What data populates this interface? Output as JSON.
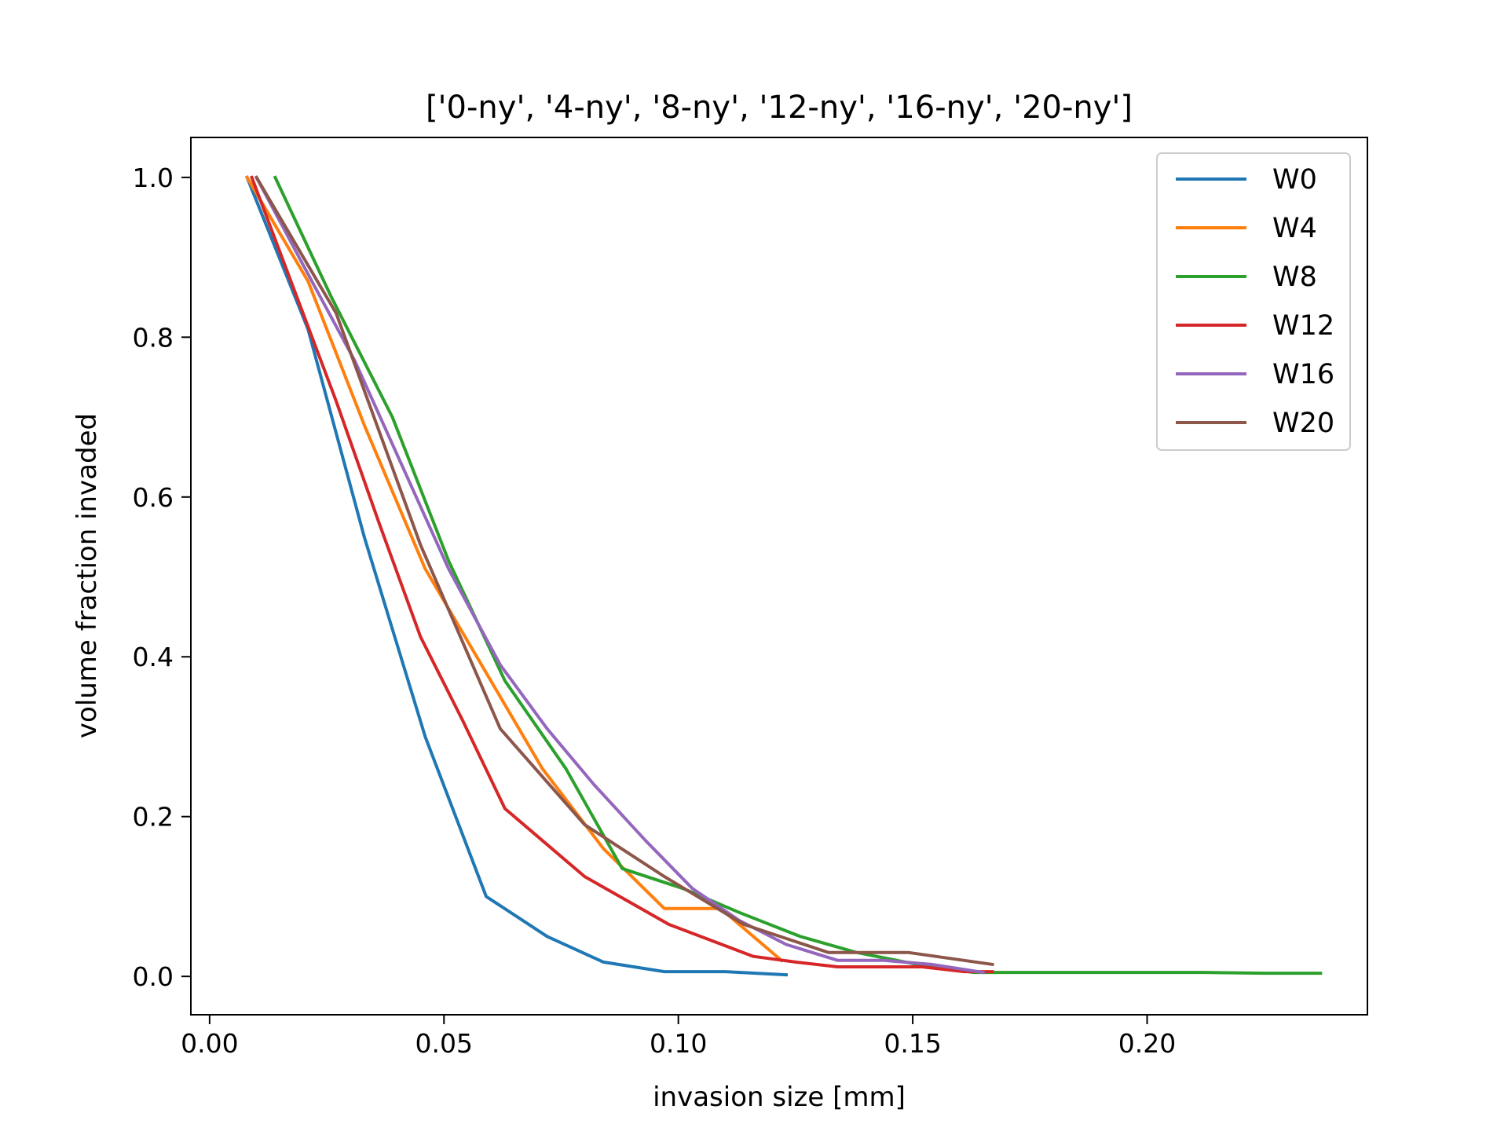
{
  "chart_data": {
    "type": "line",
    "title": "['0-ny', '4-ny', '8-ny', '12-ny', '16-ny', '20-ny']",
    "xlabel": "invasion size [mm]",
    "ylabel": "volume fraction invaded",
    "xlim": [
      -0.004,
      0.247
    ],
    "ylim": [
      -0.048,
      1.05
    ],
    "xticks": [
      0.0,
      0.05,
      0.1,
      0.15,
      0.2
    ],
    "xtick_labels": [
      "0.00",
      "0.05",
      "0.10",
      "0.15",
      "0.20"
    ],
    "yticks": [
      0.0,
      0.2,
      0.4,
      0.6,
      0.8,
      1.0
    ],
    "ytick_labels": [
      "0.0",
      "0.2",
      "0.4",
      "0.6",
      "0.8",
      "1.0"
    ],
    "grid": false,
    "legend_position": "top-right",
    "series": [
      {
        "name": "W0",
        "color": "#1f77b4",
        "x": [
          0.008,
          0.021,
          0.033,
          0.046,
          0.059,
          0.072,
          0.084,
          0.097,
          0.11,
          0.123
        ],
        "y": [
          1.0,
          0.81,
          0.55,
          0.3,
          0.1,
          0.05,
          0.018,
          0.006,
          0.006,
          0.002
        ]
      },
      {
        "name": "W4",
        "color": "#ff7f0e",
        "x": [
          0.008,
          0.021,
          0.033,
          0.046,
          0.059,
          0.071,
          0.084,
          0.097,
          0.109,
          0.122
        ],
        "y": [
          1.0,
          0.87,
          0.69,
          0.51,
          0.38,
          0.26,
          0.16,
          0.085,
          0.085,
          0.02
        ]
      },
      {
        "name": "W8",
        "color": "#2ca02c",
        "x": [
          0.014,
          0.026,
          0.039,
          0.051,
          0.063,
          0.076,
          0.088,
          0.101,
          0.113,
          0.126,
          0.138,
          0.151,
          0.163,
          0.175,
          0.188,
          0.2,
          0.212,
          0.225,
          0.237
        ],
        "y": [
          1.0,
          0.85,
          0.7,
          0.52,
          0.37,
          0.26,
          0.135,
          0.11,
          0.08,
          0.05,
          0.03,
          0.015,
          0.005,
          0.005,
          0.005,
          0.005,
          0.005,
          0.004,
          0.004
        ]
      },
      {
        "name": "W12",
        "color": "#d62728",
        "x": [
          0.009,
          0.018,
          0.027,
          0.036,
          0.045,
          0.054,
          0.063,
          0.072,
          0.08,
          0.089,
          0.098,
          0.107,
          0.116,
          0.125,
          0.134,
          0.143,
          0.152,
          0.161,
          0.167
        ],
        "y": [
          1.0,
          0.86,
          0.72,
          0.57,
          0.425,
          0.32,
          0.21,
          0.165,
          0.125,
          0.095,
          0.065,
          0.045,
          0.025,
          0.018,
          0.012,
          0.012,
          0.012,
          0.006,
          0.006
        ]
      },
      {
        "name": "W16",
        "color": "#9467bd",
        "x": [
          0.01,
          0.02,
          0.031,
          0.041,
          0.051,
          0.062,
          0.072,
          0.082,
          0.093,
          0.103,
          0.113,
          0.123,
          0.134,
          0.144,
          0.154,
          0.165
        ],
        "y": [
          1.0,
          0.89,
          0.77,
          0.64,
          0.51,
          0.39,
          0.31,
          0.24,
          0.17,
          0.11,
          0.07,
          0.04,
          0.02,
          0.02,
          0.015,
          0.005
        ]
      },
      {
        "name": "W20",
        "color": "#8c564b",
        "x": [
          0.01,
          0.027,
          0.045,
          0.062,
          0.08,
          0.097,
          0.114,
          0.132,
          0.149,
          0.167
        ],
        "y": [
          1.0,
          0.83,
          0.54,
          0.31,
          0.19,
          0.125,
          0.065,
          0.03,
          0.03,
          0.015
        ]
      }
    ]
  }
}
